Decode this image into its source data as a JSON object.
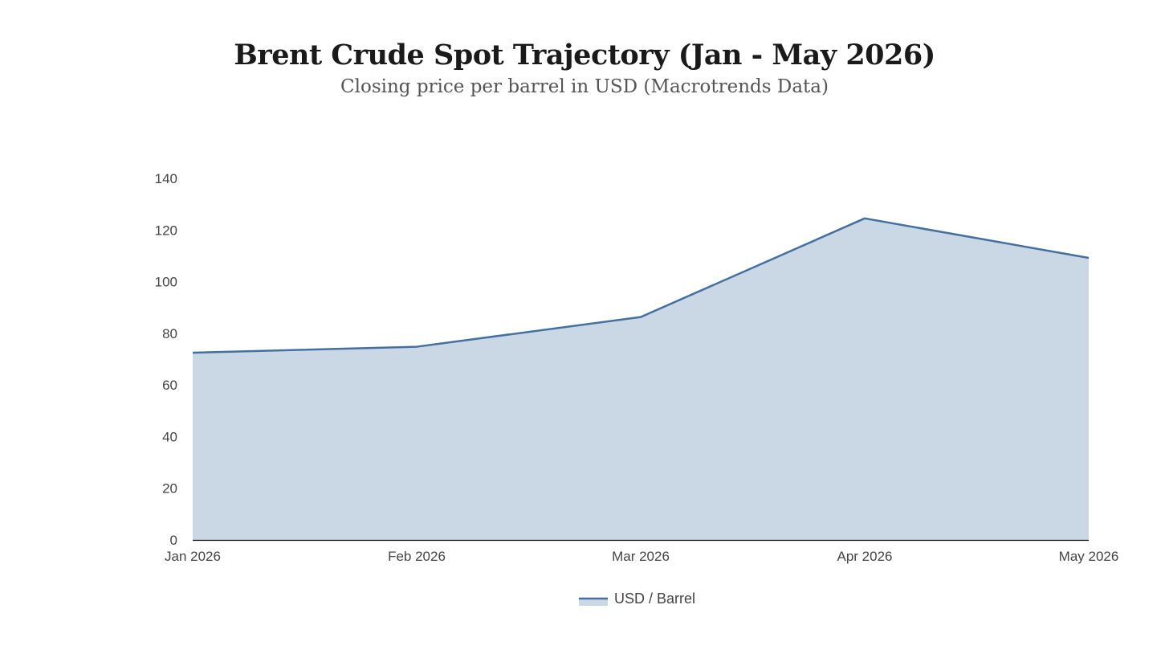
{
  "chart_data": {
    "type": "area",
    "title": "Brent Crude Spot Trajectory (Jan - May 2026)",
    "subtitle": "Closing price per barrel in USD (Macrotrends Data)",
    "categories": [
      "Jan 2026",
      "Feb 2026",
      "Mar 2026",
      "Apr 2026",
      "May 2026"
    ],
    "series": [
      {
        "name": "USD / Barrel",
        "values": [
          72.5,
          74.8,
          86.3,
          124.5,
          109.2
        ]
      }
    ],
    "y_ticks": [
      "0",
      "20",
      "40",
      "60",
      "80",
      "100",
      "120",
      "140"
    ],
    "ylim": [
      0,
      140
    ],
    "grid": false,
    "legend_position": "bottom-center",
    "colors": {
      "line": "#4470a0",
      "fill": "#cad8e5",
      "axis": "#000000"
    }
  }
}
